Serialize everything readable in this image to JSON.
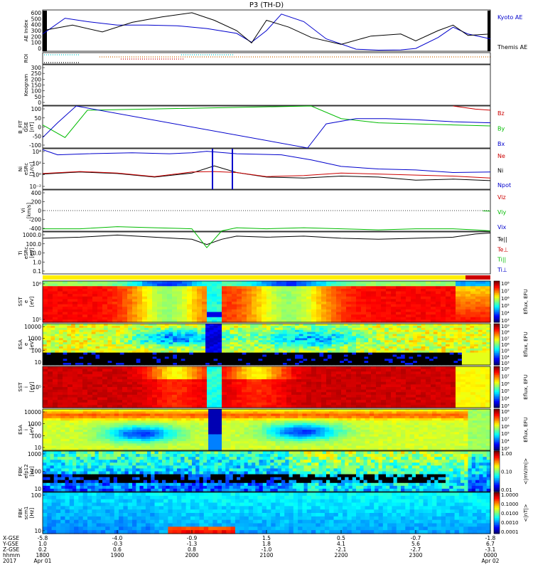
{
  "title": "P3 (TH-D)",
  "panels": [
    {
      "id": "ae",
      "ylabel": [
        "AE Index"
      ],
      "yticks": [
        "600",
        "500",
        "400",
        "300",
        "200",
        "100",
        "0"
      ],
      "legend": [
        {
          "text": "Kyoto AE",
          "color": "#0000cc"
        },
        {
          "text": "Themis AE",
          "color": "#000000"
        }
      ]
    },
    {
      "id": "roi",
      "ylabel": [
        "ROI"
      ],
      "yticks": [],
      "legend": []
    },
    {
      "id": "keogram",
      "ylabel": [
        "Keogram"
      ],
      "yticks": [
        "300",
        "250",
        "200",
        "150",
        "100",
        "50",
        "0"
      ],
      "legend": []
    },
    {
      "id": "bfit",
      "ylabel": [
        "B_FIT",
        "GSE",
        "[nT]"
      ],
      "yticks": [
        "100",
        "50",
        "0",
        "-50",
        "-100"
      ],
      "legend": [
        {
          "text": "Bz",
          "color": "#cc0000"
        },
        {
          "text": "By",
          "color": "#00bb00"
        },
        {
          "text": "Bx",
          "color": "#0000cc"
        }
      ]
    },
    {
      "id": "ni",
      "ylabel": [
        "Ni",
        "eSRc",
        "[1/cc]"
      ],
      "yticks": [
        "10⁴",
        "10²",
        "10⁰",
        "10⁻²"
      ],
      "legend": [
        {
          "text": "Ne",
          "color": "#cc0000"
        },
        {
          "text": "Ni",
          "color": "#000000"
        },
        {
          "text": "Npot",
          "color": "#0000cc"
        }
      ]
    },
    {
      "id": "vi",
      "ylabel": [
        "Vi",
        "[km/s]"
      ],
      "yticks": [
        "400",
        "200",
        "0",
        "-200",
        "-400"
      ],
      "legend": [
        {
          "text": "Viz",
          "color": "#cc0000"
        },
        {
          "text": "Viy",
          "color": "#00bb00"
        },
        {
          "text": "Vix",
          "color": "#0000cc"
        }
      ]
    },
    {
      "id": "ti",
      "ylabel": [
        "Ti",
        "eSRc",
        "[eV]"
      ],
      "yticks": [
        "1000.0",
        "100.0",
        "10.0",
        "1.0",
        "0.1"
      ],
      "legend": [
        {
          "text": "Te||",
          "color": "#000000"
        },
        {
          "text": "Te⊥",
          "color": "#cc0000"
        },
        {
          "text": "Ti||",
          "color": "#00bb00"
        },
        {
          "text": "Ti⊥",
          "color": "#0000cc"
        }
      ]
    },
    {
      "id": "sst_e",
      "ylabel": [
        "SST",
        "e",
        "[eV]"
      ],
      "yticks": [
        "10⁶",
        "10⁵"
      ],
      "legend": []
    },
    {
      "id": "esa_e",
      "ylabel": [
        "ESA",
        "e",
        "[eV]"
      ],
      "yticks": [
        "10000",
        "1000",
        "100",
        "10"
      ],
      "legend": []
    },
    {
      "id": "sst_i",
      "ylabel": [
        "SST",
        "i",
        "[eV]"
      ],
      "yticks": [
        "10⁵"
      ],
      "legend": []
    },
    {
      "id": "esa_i",
      "ylabel": [
        "ESA",
        "i",
        "[eV]"
      ],
      "yticks": [
        "10000",
        "1000",
        "100",
        "10"
      ],
      "legend": []
    },
    {
      "id": "fbk_e",
      "ylabel": [
        "FBK",
        "efp12",
        "[Hz]"
      ],
      "yticks": [
        "1000",
        "100",
        "10"
      ],
      "legend": []
    },
    {
      "id": "fbk_b",
      "ylabel": [
        "FBK",
        "scm1",
        "[Hz]"
      ],
      "yticks": [
        "100",
        "10"
      ],
      "legend": []
    }
  ],
  "colorbars": [
    {
      "panel": "sst_e",
      "ticks": [
        "10⁸",
        "10⁷",
        "10⁶",
        "10⁵",
        "10⁴",
        "10³"
      ],
      "label": "Eflux, EFU"
    },
    {
      "panel": "esa_e",
      "ticks": [
        "10⁹",
        "10⁸",
        "10⁷",
        "10⁶",
        "10⁵",
        "10⁴",
        "10³"
      ],
      "label": "Eflux, EFU"
    },
    {
      "panel": "sst_i",
      "ticks": [
        "10⁸",
        "10⁷",
        "10⁶",
        "10⁵",
        "10⁴",
        "10³"
      ],
      "label": "Eflux, EFU"
    },
    {
      "panel": "esa_i",
      "ticks": [
        "10⁸",
        "10⁷",
        "10⁶",
        "10⁵",
        "10⁴",
        "10³"
      ],
      "label": "Eflux, EFU"
    },
    {
      "panel": "fbk_e",
      "ticks": [
        "1.00",
        "0.10",
        "0.01"
      ],
      "label": "<|mV/m|>"
    },
    {
      "panel": "fbk_b",
      "ticks": [
        "1.0000",
        "0.1000",
        "0.0100",
        "0.0010",
        "0.0001"
      ],
      "label": "<|nT|>"
    }
  ],
  "xaxis": {
    "row_labels": [
      "X-GSE",
      "Y-GSE",
      "Z-GSE",
      "hhmm",
      "2017"
    ],
    "columns": [
      {
        "values": [
          "-5.8",
          "1.0",
          "0.2",
          "1800",
          "Apr 01"
        ]
      },
      {
        "values": [
          "-4.0",
          "-0.3",
          "0.6",
          "1900",
          ""
        ]
      },
      {
        "values": [
          "-0.9",
          "-1.3",
          "0.8",
          "2000",
          ""
        ]
      },
      {
        "values": [
          "1.5",
          "1.8",
          "-1.0",
          "2100",
          ""
        ]
      },
      {
        "values": [
          "0.5",
          "4.1",
          "-2.1",
          "2200",
          ""
        ]
      },
      {
        "values": [
          "-0.7",
          "5.6",
          "-2.7",
          "2300",
          ""
        ]
      },
      {
        "values": [
          "-1.8",
          "6.7",
          "-3.1",
          "0000",
          "Apr 02"
        ]
      }
    ]
  },
  "chart_data": {
    "type": "line",
    "title": "P3 (TH-D)",
    "xlabel": "hhmm",
    "x_hours": [
      18,
      19,
      20,
      21,
      22,
      23,
      24
    ],
    "series": [
      {
        "name": "Kyoto AE",
        "panel": "ae",
        "color": "#0000cc",
        "ylim": [
          0,
          600
        ],
        "x": [
          18,
          18.3,
          18.6,
          19,
          19.4,
          19.8,
          20.2,
          20.6,
          20.8,
          21.0,
          21.2,
          21.5,
          21.8,
          22.2,
          22.5,
          22.8,
          23.0,
          23.3,
          23.5,
          23.7,
          24
        ],
        "y": [
          250,
          480,
          430,
          380,
          380,
          370,
          330,
          260,
          130,
          300,
          540,
          430,
          180,
          30,
          15,
          20,
          40,
          200,
          350,
          250,
          180
        ]
      },
      {
        "name": "Themis AE",
        "panel": "ae",
        "color": "#000000",
        "ylim": [
          0,
          600
        ],
        "x": [
          18,
          18.4,
          18.8,
          19.2,
          19.6,
          20.0,
          20.3,
          20.6,
          20.8,
          21.0,
          21.3,
          21.6,
          22.0,
          22.4,
          22.8,
          23.0,
          23.3,
          23.5,
          23.7,
          24
        ],
        "y": [
          300,
          380,
          280,
          420,
          500,
          560,
          450,
          300,
          120,
          450,
          350,
          200,
          100,
          220,
          250,
          150,
          300,
          380,
          230,
          250
        ]
      },
      {
        "name": "Bz",
        "panel": "bfit",
        "color": "#cc0000",
        "ylim": [
          -100,
          100
        ],
        "x": [
          23.5,
          23.8,
          24
        ],
        "y": [
          100,
          85,
          80
        ]
      },
      {
        "name": "By",
        "panel": "bfit",
        "color": "#00bb00",
        "ylim": [
          -100,
          100
        ],
        "x": [
          18,
          18.3,
          18.6,
          21.6,
          22.0,
          22.5,
          23.0,
          23.5,
          24
        ],
        "y": [
          10,
          -50,
          80,
          100,
          40,
          20,
          15,
          10,
          5
        ]
      },
      {
        "name": "Bx",
        "panel": "bfit",
        "color": "#0000cc",
        "ylim": [
          -100,
          100
        ],
        "x": [
          18,
          18.2,
          18.45,
          21.55,
          21.8,
          22.2,
          22.6,
          23.0,
          23.5,
          24
        ],
        "y": [
          -50,
          20,
          100,
          -100,
          15,
          40,
          40,
          35,
          25,
          20
        ]
      },
      {
        "name": "Ni",
        "panel": "ni",
        "color": "#000000",
        "ylim": [
          -3,
          5
        ],
        "x": [
          18,
          18.5,
          19,
          19.5,
          20.0,
          20.3,
          20.6,
          21,
          21.5,
          22,
          22.5,
          23,
          23.5,
          24
        ],
        "y": [
          0,
          0.4,
          0.1,
          -0.6,
          0.2,
          1.6,
          0.3,
          -0.6,
          -0.8,
          -0.4,
          -0.6,
          -1.2,
          -1.0,
          -1.3
        ]
      },
      {
        "name": "Ne",
        "panel": "ni",
        "color": "#cc0000",
        "ylim": [
          -3,
          5
        ],
        "x": [
          18,
          18.5,
          19,
          19.5,
          20.0,
          20.3,
          20.6,
          21,
          21.5,
          22,
          22.5,
          23,
          23.5,
          24
        ],
        "y": [
          0.1,
          0.5,
          0.2,
          -0.5,
          0.4,
          0.5,
          0.3,
          -0.5,
          -0.3,
          0.2,
          0.0,
          -0.2,
          -0.4,
          -0.8
        ]
      },
      {
        "name": "Npot",
        "panel": "ni",
        "color": "#0000cc",
        "ylim": [
          -3,
          5
        ],
        "x": [
          18,
          18.2,
          18.6,
          19.2,
          19.7,
          20.0,
          20.2,
          20.6,
          21.2,
          21.6,
          22.0,
          22.5,
          23,
          23.5,
          24
        ],
        "y": [
          4.8,
          3.8,
          4.0,
          4.2,
          4.0,
          4.2,
          4.5,
          4.0,
          3.8,
          2.8,
          1.5,
          1.0,
          0.8,
          0.3,
          0.4
        ]
      },
      {
        "name": "Viy",
        "panel": "vi",
        "color": "#00bb00",
        "ylim": [
          -400,
          400
        ],
        "x": [
          23.9,
          24
        ],
        "y": [
          -5,
          -10
        ]
      },
      {
        "name": "Te||",
        "panel": "ti",
        "color": "#000000",
        "ylim": [
          -1,
          3
        ],
        "x": [
          18,
          18.5,
          19,
          19.5,
          20.0,
          20.2,
          20.4,
          20.6,
          21,
          21.5,
          22,
          22.5,
          23,
          23.5,
          23.8,
          24
        ],
        "y": [
          2.4,
          2.5,
          2.7,
          2.5,
          2.3,
          1.8,
          2.3,
          2.6,
          2.5,
          2.6,
          2.4,
          2.3,
          2.4,
          2.5,
          2.8,
          2.9
        ]
      },
      {
        "name": "Ti||",
        "panel": "ti",
        "color": "#00bb00",
        "ylim": [
          -1,
          3
        ],
        "x": [
          18,
          18.5,
          19,
          19.5,
          20.0,
          20.2,
          20.4,
          20.6,
          21,
          21.5,
          22,
          22.5,
          23,
          23.5,
          23.8,
          24
        ],
        "y": [
          3.3,
          3.3,
          3.5,
          3.4,
          3.3,
          1.5,
          3.1,
          3.4,
          3.3,
          3.4,
          3.3,
          3.2,
          3.3,
          3.3,
          3.2,
          3.1
        ]
      }
    ]
  }
}
